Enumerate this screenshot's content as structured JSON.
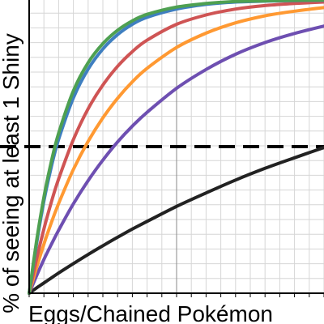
{
  "chart_data": {
    "type": "line",
    "xlabel": "Eggs/Chained Pokémon",
    "ylabel": "% of seeing at least 1 Shiny",
    "xlim": [
      0,
      1000
    ],
    "ylim": [
      0,
      1
    ],
    "grid": true,
    "legend": "none",
    "reference_line": {
      "y": 0.5,
      "style": "dashed",
      "color": "#000000"
    },
    "x": [
      0,
      25,
      50,
      75,
      100,
      150,
      200,
      250,
      300,
      350,
      400,
      500,
      600,
      700,
      800,
      900,
      1000
    ],
    "series": [
      {
        "color": "#222222",
        "values": [
          0,
          0.018,
          0.035,
          0.052,
          0.069,
          0.101,
          0.132,
          0.162,
          0.191,
          0.219,
          0.245,
          0.296,
          0.342,
          0.386,
          0.426,
          0.462,
          0.497
        ]
      },
      {
        "color": "#6e4fb1",
        "values": [
          0,
          0.059,
          0.115,
          0.166,
          0.215,
          0.305,
          0.384,
          0.454,
          0.516,
          0.57,
          0.617,
          0.699,
          0.763,
          0.815,
          0.855,
          0.886,
          0.911
        ]
      },
      {
        "color": "#ff9932",
        "values": [
          0,
          0.087,
          0.167,
          0.24,
          0.306,
          0.422,
          0.518,
          0.598,
          0.665,
          0.721,
          0.767,
          0.838,
          0.887,
          0.922,
          0.946,
          0.962,
          0.974
        ]
      },
      {
        "color": "#cf5454",
        "values": [
          0,
          0.116,
          0.219,
          0.31,
          0.39,
          0.524,
          0.629,
          0.71,
          0.774,
          0.824,
          0.863,
          0.917,
          0.949,
          0.969,
          0.981,
          0.988,
          0.993
        ]
      },
      {
        "color": "#3f7fc0",
        "values": [
          0,
          0.168,
          0.314,
          0.43,
          0.525,
          0.666,
          0.764,
          0.833,
          0.882,
          0.917,
          0.941,
          0.969,
          0.985,
          0.993,
          0.996,
          0.998,
          0.999
        ]
      },
      {
        "color": "#4ea051",
        "values": [
          0,
          0.178,
          0.328,
          0.448,
          0.546,
          0.69,
          0.786,
          0.851,
          0.897,
          0.929,
          0.951,
          0.976,
          0.988,
          0.995,
          0.997,
          0.999,
          1.0
        ]
      }
    ]
  }
}
